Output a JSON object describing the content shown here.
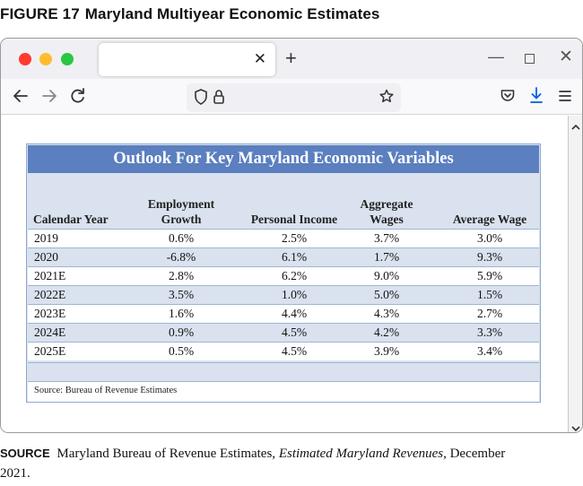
{
  "figure": {
    "number": "FIGURE 17",
    "title": "Maryland Multiyear Economic Estimates"
  },
  "browser": {
    "tab_title": "",
    "url": "",
    "icons": {
      "close_tab": "close-icon",
      "new_tab": "plus-icon",
      "back": "arrow-left-icon",
      "forward": "arrow-right-icon",
      "reload": "reload-icon",
      "shield": "shield-icon",
      "lock": "lock-icon",
      "bookmark": "star-icon",
      "pocket": "pocket-icon",
      "downloads": "download-icon",
      "menu": "hamburger-menu-icon"
    },
    "colors": {
      "close_dot": "#ff3b30",
      "minimize_dot": "#ffbd2e",
      "zoom_dot": "#28c840",
      "accent": "#0060df"
    }
  },
  "report": {
    "title": "Outlook For Key Maryland Economic Variables",
    "header_color": "#5b7fbf",
    "stripe_color": "#d9e2ee",
    "columns": {
      "year": "Calendar Year",
      "employment_line1": "Employment",
      "employment_line2": "Growth",
      "personal_income": "Personal Income",
      "wages_line1": "Aggregate",
      "wages_line2": "Wages",
      "average_wage": "Average Wage"
    },
    "rows": [
      {
        "year": "2019",
        "employment": "0.6%",
        "income": "2.5%",
        "wages": "3.7%",
        "avg_wage": "3.0%"
      },
      {
        "year": "2020",
        "employment": "-6.8%",
        "income": "6.1%",
        "wages": "1.7%",
        "avg_wage": "9.3%"
      },
      {
        "year": "2021E",
        "employment": "2.8%",
        "income": "6.2%",
        "wages": "9.0%",
        "avg_wage": "5.9%"
      },
      {
        "year": "2022E",
        "employment": "3.5%",
        "income": "1.0%",
        "wages": "5.0%",
        "avg_wage": "1.5%"
      },
      {
        "year": "2023E",
        "employment": "1.6%",
        "income": "4.4%",
        "wages": "4.3%",
        "avg_wage": "2.7%"
      },
      {
        "year": "2024E",
        "employment": "0.9%",
        "income": "4.5%",
        "wages": "4.2%",
        "avg_wage": "3.3%"
      },
      {
        "year": "2025E",
        "employment": "0.5%",
        "income": "4.5%",
        "wages": "3.9%",
        "avg_wage": "3.4%"
      }
    ],
    "source_note": "Source:  Bureau of Revenue Estimates"
  },
  "caption": {
    "label": "SOURCE",
    "text_before": "Maryland Bureau of Revenue Estimates,",
    "publication": "Estimated Maryland Revenues",
    "text_after": ", December 2021."
  }
}
